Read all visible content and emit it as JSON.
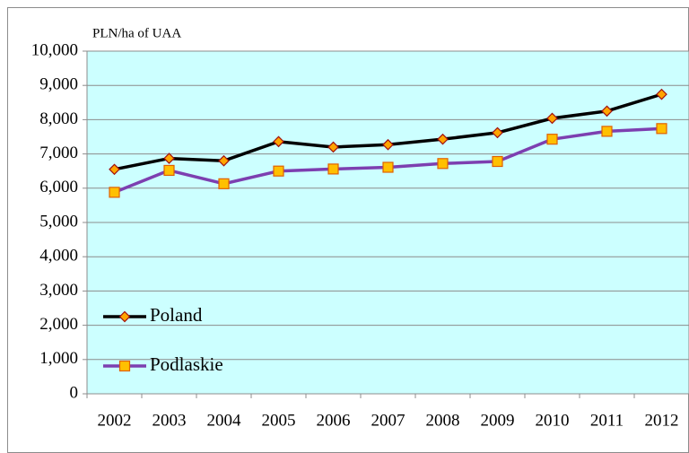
{
  "chart_data": {
    "type": "line",
    "y_label": "PLN/ha of UAA",
    "categories": [
      "2002",
      "2003",
      "2004",
      "2005",
      "2006",
      "2007",
      "2008",
      "2009",
      "2010",
      "2011",
      "2012"
    ],
    "series": [
      {
        "name": "Poland",
        "color": "#000000",
        "marker": "diamond",
        "marker_fill": "#ffa500",
        "marker_stroke": "#a01010",
        "values": [
          6550,
          6870,
          6800,
          7360,
          7200,
          7270,
          7430,
          7620,
          8040,
          8250,
          8740
        ]
      },
      {
        "name": "Podlaskie",
        "color": "#7d3fb0",
        "marker": "square",
        "marker_fill": "#ffc000",
        "marker_stroke": "#e06000",
        "values": [
          5880,
          6520,
          6130,
          6500,
          6560,
          6610,
          6720,
          6780,
          7430,
          7660,
          7740
        ]
      }
    ],
    "ylim": [
      0,
      10000
    ],
    "yticks": [
      0,
      {
        "value": 1000,
        "label": "1,000"
      },
      {
        "value": 2000,
        "label": "2,000"
      },
      {
        "value": 3000,
        "label": "3,000"
      },
      {
        "value": 4000,
        "label": "4,000"
      },
      {
        "value": 5000,
        "label": "5,000"
      },
      {
        "value": 6000,
        "label": "6,000"
      },
      {
        "value": 7000,
        "label": "7,000"
      },
      {
        "value": 8000,
        "label": "8,000"
      },
      {
        "value": 9000,
        "label": "9,000"
      },
      {
        "value": 10000,
        "label": "10,000"
      }
    ],
    "grid": true,
    "plot_background": "#ccffff",
    "legend": "lower left"
  }
}
